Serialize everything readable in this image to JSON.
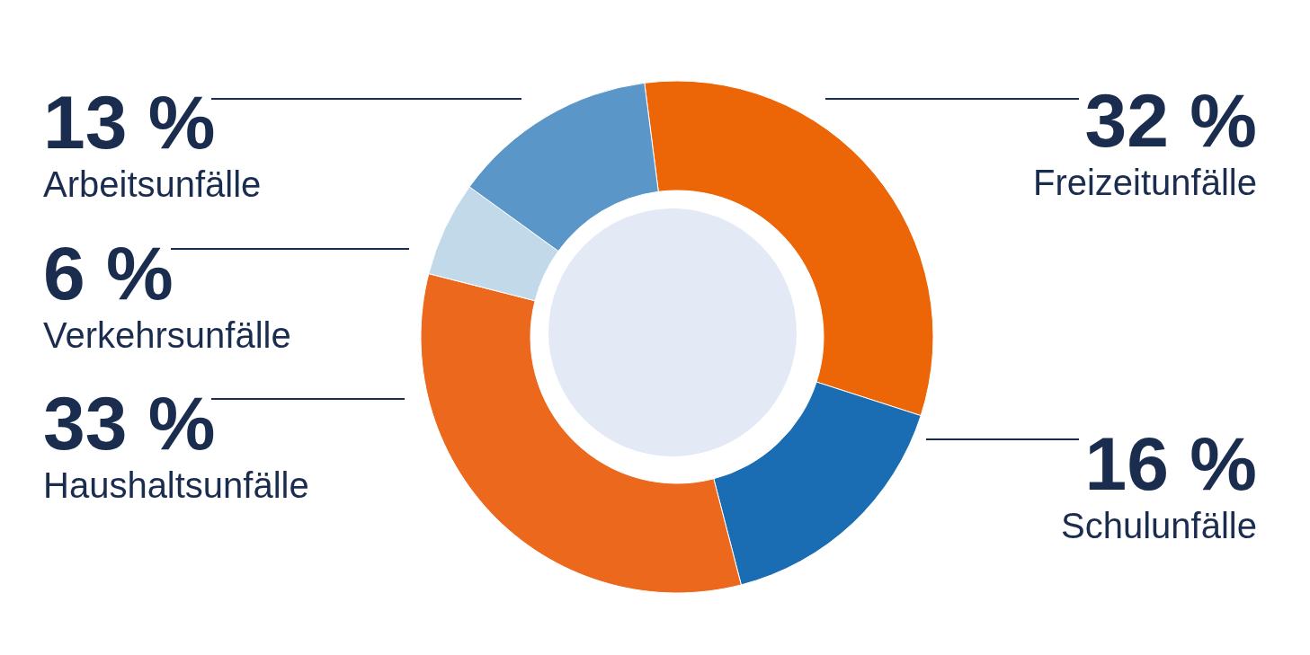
{
  "chart_data": {
    "type": "donut",
    "categories": [
      "Freizeitunfälle",
      "Schulunfälle",
      "Haushaltsunfälle",
      "Verkehrsunfälle",
      "Arbeitsunfälle"
    ],
    "values": [
      32,
      16,
      33,
      6,
      13
    ],
    "colors": [
      "#ec6608",
      "#1b6db3",
      "#ec681c",
      "#c2d9ea",
      "#5a96c8"
    ],
    "value_labels": [
      "32 %",
      "16 %",
      "33 %",
      "6 %",
      "13 %"
    ]
  }
}
